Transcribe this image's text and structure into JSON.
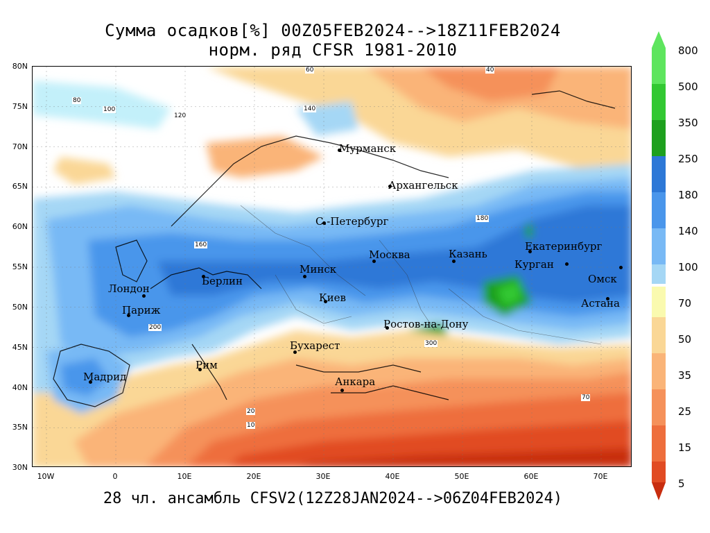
{
  "title_line1": "Сумма осадков[%] 00Z05FEB2024-->18Z11FEB2024",
  "title_line2": "норм. ряд CFSR 1981-2010",
  "footer": "28 чл. ансамбль CFSV2(12Z28JAN2024-->06Z04FEB2024)",
  "lat_labels": [
    "80N",
    "75N",
    "70N",
    "65N",
    "60N",
    "55N",
    "50N",
    "45N",
    "40N",
    "35N",
    "30N"
  ],
  "lon_labels": [
    "10W",
    "0",
    "10E",
    "20E",
    "30E",
    "40E",
    "50E",
    "60E",
    "70E"
  ],
  "cities": [
    {
      "name": "Мурманск"
    },
    {
      "name": "Архангельск"
    },
    {
      "name": "С.-Петербург"
    },
    {
      "name": "Москва"
    },
    {
      "name": "Казань"
    },
    {
      "name": "Екатеринбург"
    },
    {
      "name": "Курган"
    },
    {
      "name": "Омск"
    },
    {
      "name": "Астана"
    },
    {
      "name": "Минск"
    },
    {
      "name": "Берлин"
    },
    {
      "name": "Лондон"
    },
    {
      "name": "Париж"
    },
    {
      "name": "Киев"
    },
    {
      "name": "Ростов-на-Дону"
    },
    {
      "name": "Бухарест"
    },
    {
      "name": "Рим"
    },
    {
      "name": "Мадрид"
    },
    {
      "name": "Анкара"
    }
  ],
  "contour_labels": [
    "60",
    "40",
    "80",
    "100",
    "120",
    "140",
    "160",
    "180",
    "200",
    "300",
    "20",
    "10",
    "70"
  ],
  "legend": {
    "upper": [
      {
        "value": "800",
        "color": "#5ee55e"
      },
      {
        "value": "500",
        "color": "#32c832"
      },
      {
        "value": "350",
        "color": "#1ea01e"
      },
      {
        "value": "250",
        "color": "#2d78d7"
      },
      {
        "value": "180",
        "color": "#4a96eb"
      },
      {
        "value": "140",
        "color": "#78b9f5"
      },
      {
        "value": "",
        "color": "#a5d7f5"
      },
      {
        "value": "",
        "color": "#c3f0fa"
      }
    ],
    "middle": "100",
    "lower": [
      {
        "value": "70",
        "color": "#fafaaf"
      },
      {
        "value": "50",
        "color": "#fad796"
      },
      {
        "value": "35",
        "color": "#fab478"
      },
      {
        "value": "25",
        "color": "#f5915a"
      },
      {
        "value": "15",
        "color": "#ee6e3c"
      },
      {
        "value": "",
        "color": "#e14b23"
      },
      {
        "value": "5",
        "color": "#c82d0f"
      }
    ],
    "upper_arrow_color": "#5ee55e",
    "lower_arrow_color": "#c82d0f"
  }
}
